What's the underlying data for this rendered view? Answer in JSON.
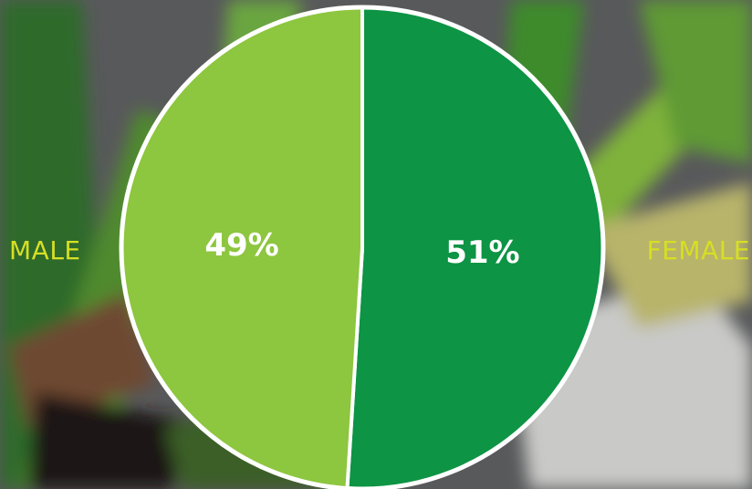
{
  "chart_data": {
    "type": "pie",
    "title": "",
    "categories": [
      "MALE",
      "FEMALE"
    ],
    "values": [
      49,
      51
    ],
    "value_labels": [
      "49%",
      "51%"
    ],
    "colors": [
      "#8dc63f",
      "#0d9444"
    ],
    "slice_label_color": "#ffffff",
    "category_label_color": "#d7df23",
    "border_color": "#ffffff",
    "legend": "none"
  }
}
